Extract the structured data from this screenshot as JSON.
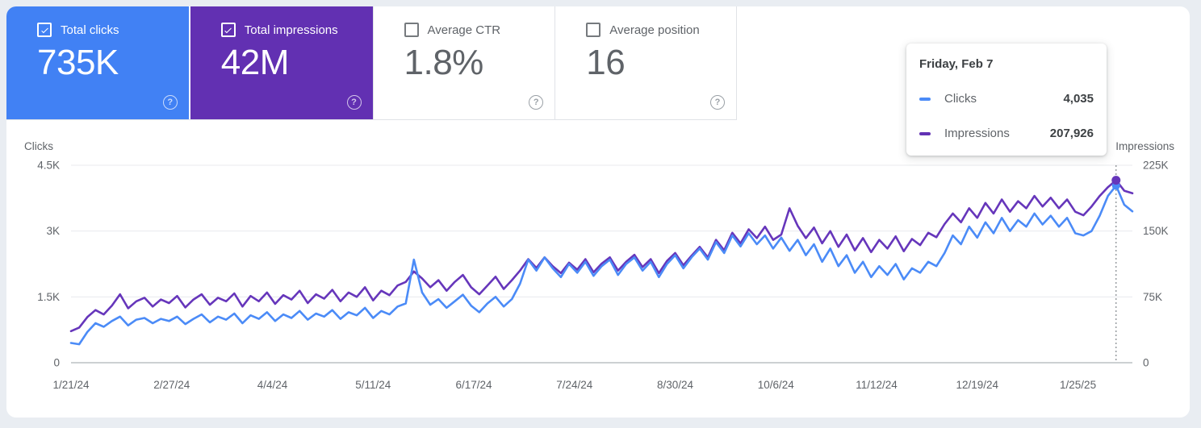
{
  "icons": {
    "help": "?"
  },
  "cards": [
    {
      "label": "Total clicks",
      "value": "735K",
      "checked": true,
      "color": "#4181f4"
    },
    {
      "label": "Total impressions",
      "value": "42M",
      "checked": true,
      "color": "#6230b2"
    },
    {
      "label": "Average CTR",
      "value": "1.8%",
      "checked": false,
      "color": "#ffffff"
    },
    {
      "label": "Average position",
      "value": "16",
      "checked": false,
      "color": "#ffffff"
    }
  ],
  "tooltip": {
    "title": "Friday, Feb 7",
    "rows": [
      {
        "label": "Clicks",
        "value": "4,035",
        "color": "#4b8bf7"
      },
      {
        "label": "Impressions",
        "value": "207,926",
        "color": "#6232b4"
      }
    ]
  },
  "chart_data": {
    "type": "line",
    "left_axis_title": "Clicks",
    "right_axis_title": "Impressions",
    "left_ticks": [
      "0",
      "1.5K",
      "3K",
      "4.5K"
    ],
    "right_ticks": [
      "0",
      "75K",
      "150K",
      "225K"
    ],
    "left_max": 4500,
    "right_max": 225000,
    "grid": true,
    "legend": "none",
    "x_tick_labels": [
      "1/21/24",
      "2/27/24",
      "4/4/24",
      "5/11/24",
      "6/17/24",
      "7/24/24",
      "8/30/24",
      "10/6/24",
      "11/12/24",
      "12/19/24",
      "1/25/25"
    ],
    "start_date": "1/21/24",
    "tick_day_interval": 37,
    "day_step": 3,
    "total_days": 390,
    "hover_index": 128,
    "hover": {
      "date": "Friday, Feb 7",
      "clicks": 4035,
      "impressions": 207926
    },
    "series": [
      {
        "name": "Clicks",
        "axis": "left",
        "color": "#4b8bf7",
        "values": [
          450,
          420,
          700,
          900,
          820,
          950,
          1050,
          850,
          980,
          1020,
          900,
          1000,
          950,
          1050,
          880,
          1000,
          1100,
          920,
          1050,
          980,
          1120,
          900,
          1080,
          1000,
          1150,
          950,
          1100,
          1020,
          1180,
          980,
          1120,
          1050,
          1200,
          1000,
          1150,
          1080,
          1250,
          1020,
          1180,
          1100,
          1280,
          1350,
          2350,
          1600,
          1320,
          1450,
          1250,
          1400,
          1550,
          1300,
          1150,
          1350,
          1500,
          1280,
          1450,
          1800,
          2350,
          2100,
          2400,
          2150,
          1950,
          2250,
          2050,
          2300,
          1980,
          2200,
          2350,
          2000,
          2250,
          2400,
          2100,
          2300,
          1950,
          2250,
          2450,
          2150,
          2400,
          2600,
          2350,
          2750,
          2500,
          2900,
          2650,
          2950,
          2700,
          2900,
          2600,
          2850,
          2550,
          2800,
          2450,
          2700,
          2300,
          2600,
          2200,
          2450,
          2050,
          2300,
          1950,
          2200,
          2000,
          2250,
          1900,
          2150,
          2050,
          2300,
          2200,
          2500,
          2900,
          2700,
          3100,
          2850,
          3200,
          2950,
          3300,
          3000,
          3250,
          3100,
          3400,
          3150,
          3350,
          3100,
          3300,
          2950,
          2900,
          3000,
          3350,
          3800,
          4035,
          3600,
          3450
        ]
      },
      {
        "name": "Impressions",
        "axis": "right",
        "color": "#6636bb",
        "values": [
          36000,
          40000,
          52000,
          60000,
          55000,
          65000,
          78000,
          62000,
          70000,
          74000,
          64000,
          72000,
          68000,
          76000,
          63000,
          72000,
          78000,
          66000,
          74000,
          70000,
          79000,
          64000,
          76000,
          70000,
          80000,
          67000,
          77000,
          72000,
          82000,
          68000,
          78000,
          73000,
          83000,
          70000,
          80000,
          75000,
          86000,
          71000,
          82000,
          77000,
          88000,
          92000,
          104000,
          96000,
          86000,
          94000,
          82000,
          92000,
          100000,
          86000,
          78000,
          88000,
          98000,
          84000,
          94000,
          105000,
          118000,
          108000,
          120000,
          110000,
          102000,
          114000,
          106000,
          118000,
          103000,
          113000,
          120000,
          105000,
          115000,
          123000,
          109000,
          118000,
          102000,
          116000,
          125000,
          111000,
          122000,
          132000,
          120000,
          140000,
          128000,
          148000,
          136000,
          152000,
          142000,
          155000,
          140000,
          146000,
          176000,
          156000,
          142000,
          154000,
          136000,
          150000,
          132000,
          146000,
          128000,
          142000,
          126000,
          140000,
          130000,
          144000,
          127000,
          141000,
          134000,
          148000,
          143000,
          158000,
          170000,
          160000,
          176000,
          165000,
          182000,
          170000,
          186000,
          172000,
          184000,
          176000,
          190000,
          178000,
          188000,
          176000,
          186000,
          172000,
          168000,
          178000,
          190000,
          200000,
          207926,
          196000,
          193000
        ]
      }
    ]
  }
}
